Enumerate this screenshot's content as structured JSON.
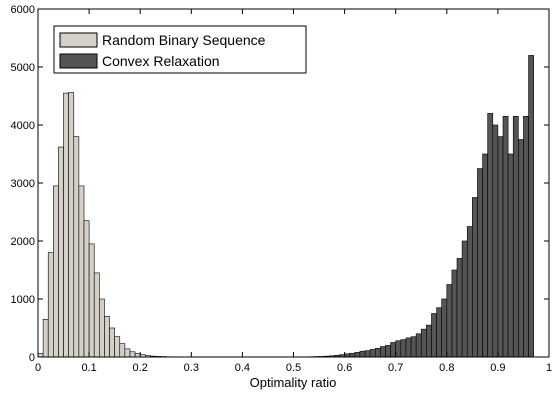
{
  "chart_data": {
    "type": "bar",
    "title": "",
    "xlabel": "Optimality ratio",
    "ylabel": "",
    "xlim": [
      0,
      1
    ],
    "ylim": [
      0,
      6000
    ],
    "x_ticks": [
      0,
      0.1,
      0.2,
      0.3,
      0.4,
      0.5,
      0.6,
      0.7,
      0.8,
      0.9,
      1
    ],
    "x_tick_labels": [
      "0",
      "0.1",
      "0.2",
      "0.3",
      "0.4",
      "0.5",
      "0.6",
      "0.7",
      "0.8",
      "0.9",
      "1"
    ],
    "y_ticks": [
      0,
      1000,
      2000,
      3000,
      4000,
      5000,
      6000
    ],
    "y_tick_labels": [
      "0",
      "1000",
      "2000",
      "3000",
      "4000",
      "5000",
      "6000"
    ],
    "grid": false,
    "legend_placement": "top-left",
    "bin_width": 0.01,
    "series": [
      {
        "name": "Random Binary Sequence",
        "color": "#d4d0c8",
        "bin_start": 0.0,
        "values": [
          60,
          650,
          1800,
          2950,
          3620,
          4550,
          4560,
          3800,
          2950,
          2350,
          1950,
          1450,
          1000,
          700,
          500,
          350,
          230,
          140,
          90,
          60,
          40,
          25,
          15,
          10,
          8,
          5,
          4,
          3,
          2,
          2
        ]
      },
      {
        "name": "Convex Relaxation",
        "color": "#555555",
        "bin_start": 0.1,
        "values": [
          1,
          1,
          1,
          1,
          1,
          1,
          1,
          1,
          1,
          1,
          1,
          1,
          1,
          1,
          1,
          1,
          1,
          1,
          1,
          1,
          1,
          1,
          1,
          1,
          1,
          1,
          1,
          1,
          1,
          1,
          1,
          1,
          1,
          1,
          1,
          1,
          1,
          1,
          1,
          2,
          2,
          3,
          3,
          5,
          8,
          10,
          15,
          20,
          30,
          40,
          55,
          65,
          80,
          100,
          110,
          130,
          150,
          180,
          200,
          250,
          280,
          300,
          330,
          350,
          400,
          480,
          550,
          750,
          850,
          1000,
          1250,
          1500,
          1700,
          2000,
          2250,
          2750,
          3250,
          3500,
          4200,
          4000,
          3800,
          4150,
          3500,
          4150,
          3750,
          4150,
          5200
        ]
      }
    ]
  }
}
